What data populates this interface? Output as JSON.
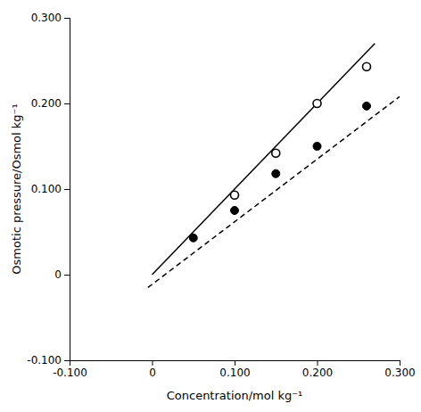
{
  "chart_data": {
    "type": "scatter",
    "xlabel": "Concentration/mol kg⁻¹",
    "ylabel": "Osmotic pressure/Osmol kg⁻¹",
    "xlim": [
      -0.1,
      0.3
    ],
    "ylim": [
      -0.1,
      0.3
    ],
    "xticks": [
      {
        "value": -0.1,
        "label": "-0.100"
      },
      0,
      {
        "value": 0.1,
        "label": "0.100"
      },
      {
        "value": 0.2,
        "label": "0.200"
      },
      {
        "value": 0.3,
        "label": "0.300"
      }
    ],
    "yticks": [
      {
        "value": -0.1,
        "label": "-0.100"
      },
      0,
      {
        "value": 0.1,
        "label": "0.100"
      },
      {
        "value": 0.2,
        "label": "0.200"
      },
      {
        "value": 0.3,
        "label": "0.300"
      }
    ],
    "grid": false,
    "series": [
      {
        "type": "line",
        "line_style": "solid",
        "color": "black",
        "x": [
          0.0,
          0.27
        ],
        "values": [
          0.0,
          0.27
        ]
      },
      {
        "type": "line",
        "line_style": "dashed",
        "color": "black",
        "x": [
          -0.005,
          0.3
        ],
        "values": [
          -0.015,
          0.208
        ]
      },
      {
        "type": "scatter",
        "marker": "open-circle",
        "color": "black",
        "x": [
          0.1,
          0.15,
          0.2,
          0.26
        ],
        "values": [
          0.093,
          0.142,
          0.2,
          0.243
        ]
      },
      {
        "type": "scatter",
        "marker": "circle",
        "color": "black",
        "x": [
          0.05,
          0.1,
          0.15,
          0.2,
          0.26
        ],
        "values": [
          0.043,
          0.075,
          0.118,
          0.15,
          0.197
        ]
      }
    ]
  }
}
